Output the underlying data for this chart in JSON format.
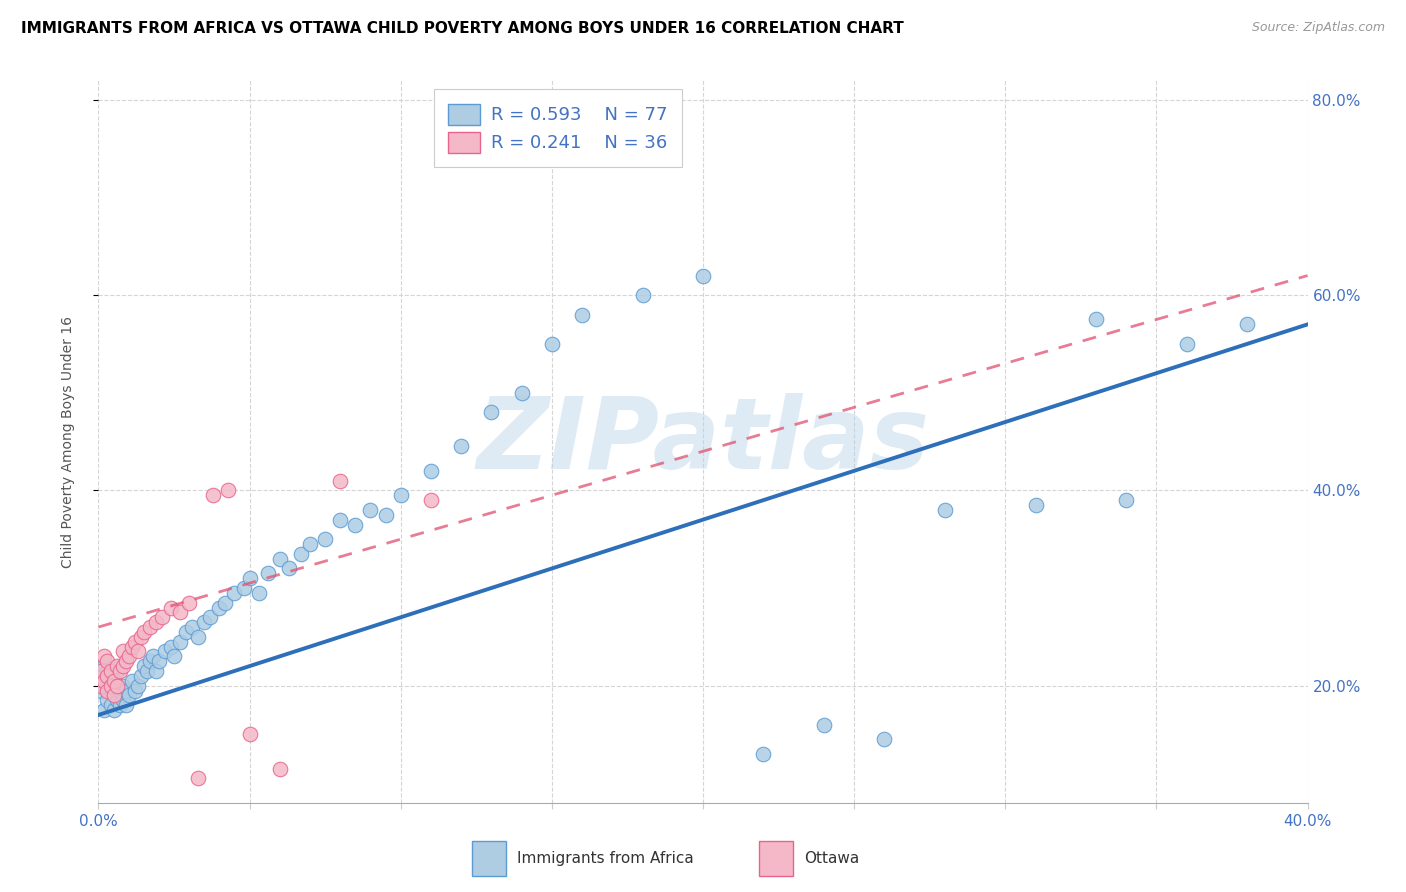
{
  "title": "IMMIGRANTS FROM AFRICA VS OTTAWA CHILD POVERTY AMONG BOYS UNDER 16 CORRELATION CHART",
  "source": "Source: ZipAtlas.com",
  "ylabel": "Child Poverty Among Boys Under 16",
  "watermark_text": "ZIPatlas",
  "blue_color": "#aecde3",
  "blue_edge": "#5b9bd5",
  "pink_color": "#f4b8c8",
  "pink_edge": "#e8648c",
  "line_blue_color": "#2e6fba",
  "line_pink_color": "#e05070",
  "legend_r1": "R = 0.593",
  "legend_n1": "N = 77",
  "legend_r2": "R = 0.241",
  "legend_n2": "N = 36",
  "xlim": [
    0.0,
    0.4
  ],
  "ylim": [
    0.08,
    0.82
  ],
  "right_yticks": [
    0.2,
    0.4,
    0.6,
    0.8
  ],
  "right_yticklabels": [
    "20.0%",
    "40.0%",
    "60.0%",
    "80.0%"
  ],
  "xtick_left": "0.0%",
  "xtick_right": "40.0%",
  "bottom_label1": "Immigrants from Africa",
  "bottom_label2": "Ottawa",
  "blue_x": [
    0.001,
    0.001,
    0.002,
    0.002,
    0.002,
    0.003,
    0.003,
    0.003,
    0.004,
    0.004,
    0.004,
    0.005,
    0.005,
    0.005,
    0.006,
    0.006,
    0.006,
    0.007,
    0.007,
    0.008,
    0.008,
    0.009,
    0.009,
    0.01,
    0.011,
    0.012,
    0.013,
    0.014,
    0.015,
    0.016,
    0.017,
    0.018,
    0.019,
    0.02,
    0.022,
    0.024,
    0.025,
    0.027,
    0.029,
    0.031,
    0.033,
    0.035,
    0.037,
    0.04,
    0.042,
    0.045,
    0.048,
    0.05,
    0.053,
    0.056,
    0.06,
    0.063,
    0.067,
    0.07,
    0.075,
    0.08,
    0.085,
    0.09,
    0.095,
    0.1,
    0.11,
    0.12,
    0.13,
    0.14,
    0.15,
    0.16,
    0.18,
    0.2,
    0.22,
    0.24,
    0.26,
    0.28,
    0.31,
    0.33,
    0.34,
    0.36,
    0.38
  ],
  "blue_y": [
    0.195,
    0.21,
    0.175,
    0.2,
    0.22,
    0.185,
    0.2,
    0.215,
    0.18,
    0.195,
    0.21,
    0.175,
    0.195,
    0.21,
    0.185,
    0.2,
    0.215,
    0.18,
    0.195,
    0.185,
    0.2,
    0.18,
    0.195,
    0.19,
    0.205,
    0.195,
    0.2,
    0.21,
    0.22,
    0.215,
    0.225,
    0.23,
    0.215,
    0.225,
    0.235,
    0.24,
    0.23,
    0.245,
    0.255,
    0.26,
    0.25,
    0.265,
    0.27,
    0.28,
    0.285,
    0.295,
    0.3,
    0.31,
    0.295,
    0.315,
    0.33,
    0.32,
    0.335,
    0.345,
    0.35,
    0.37,
    0.365,
    0.38,
    0.375,
    0.395,
    0.42,
    0.445,
    0.48,
    0.5,
    0.55,
    0.58,
    0.6,
    0.62,
    0.13,
    0.16,
    0.145,
    0.38,
    0.385,
    0.575,
    0.39,
    0.55,
    0.57
  ],
  "pink_x": [
    0.001,
    0.001,
    0.002,
    0.002,
    0.003,
    0.003,
    0.003,
    0.004,
    0.004,
    0.005,
    0.005,
    0.006,
    0.006,
    0.007,
    0.008,
    0.008,
    0.009,
    0.01,
    0.011,
    0.012,
    0.013,
    0.014,
    0.015,
    0.017,
    0.019,
    0.021,
    0.024,
    0.027,
    0.03,
    0.033,
    0.038,
    0.043,
    0.05,
    0.06,
    0.08,
    0.11
  ],
  "pink_y": [
    0.2,
    0.215,
    0.205,
    0.23,
    0.195,
    0.21,
    0.225,
    0.2,
    0.215,
    0.19,
    0.205,
    0.2,
    0.22,
    0.215,
    0.22,
    0.235,
    0.225,
    0.23,
    0.24,
    0.245,
    0.235,
    0.25,
    0.255,
    0.26,
    0.265,
    0.27,
    0.28,
    0.275,
    0.285,
    0.105,
    0.395,
    0.4,
    0.15,
    0.115,
    0.41,
    0.39
  ]
}
